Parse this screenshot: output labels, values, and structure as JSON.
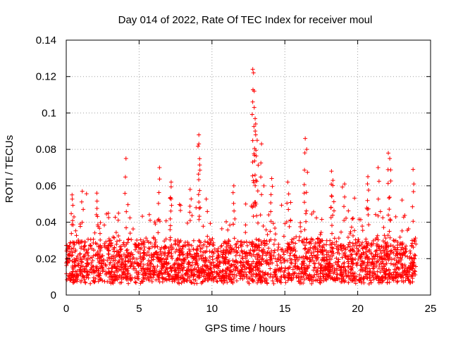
{
  "chart_data": {
    "type": "scatter",
    "title": "Day 014 of 2022, Rate Of TEC Index for receiver moul",
    "xlabel": "GPS time / hours",
    "ylabel": "ROTI / TECUs",
    "xlim": [
      0,
      25
    ],
    "ylim": [
      0,
      0.14
    ],
    "x_ticks": [
      0,
      5,
      10,
      15,
      20,
      25
    ],
    "x_tick_labels": [
      "0",
      "5",
      "10",
      "15",
      "20",
      "25"
    ],
    "y_ticks": [
      0,
      0.02,
      0.04,
      0.06,
      0.08,
      0.1,
      0.12,
      0.14
    ],
    "y_tick_labels": [
      "0",
      "0.02",
      "0.04",
      "0.06",
      "0.08",
      "0.1",
      "0.12",
      "0.14"
    ],
    "grid": true,
    "marker": "+",
    "marker_color": "#ff0000",
    "series": [
      {
        "name": "ROTI",
        "x_range": [
          0,
          24
        ],
        "baseline_range": [
          0.008,
          0.03
        ],
        "notable_points": [
          {
            "x": 4.1,
            "y": 0.075
          },
          {
            "x": 6.4,
            "y": 0.07
          },
          {
            "x": 9.1,
            "y": 0.088
          },
          {
            "x": 9.1,
            "y": 0.083
          },
          {
            "x": 12.8,
            "y": 0.124
          },
          {
            "x": 12.85,
            "y": 0.122
          },
          {
            "x": 12.9,
            "y": 0.112
          },
          {
            "x": 12.9,
            "y": 0.103
          },
          {
            "x": 13.0,
            "y": 0.094
          },
          {
            "x": 13.0,
            "y": 0.088
          },
          {
            "x": 13.1,
            "y": 0.085
          },
          {
            "x": 13.4,
            "y": 0.083
          },
          {
            "x": 16.4,
            "y": 0.086
          },
          {
            "x": 16.5,
            "y": 0.08
          },
          {
            "x": 18.2,
            "y": 0.068
          },
          {
            "x": 18.3,
            "y": 0.063
          },
          {
            "x": 21.4,
            "y": 0.07
          },
          {
            "x": 22.1,
            "y": 0.078
          },
          {
            "x": 22.2,
            "y": 0.075
          },
          {
            "x": 23.8,
            "y": 0.069
          },
          {
            "x": 0.4,
            "y": 0.055
          },
          {
            "x": 1.1,
            "y": 0.057
          },
          {
            "x": 2.1,
            "y": 0.056
          },
          {
            "x": 7.2,
            "y": 0.062
          },
          {
            "x": 8.5,
            "y": 0.058
          },
          {
            "x": 11.5,
            "y": 0.06
          },
          {
            "x": 14.1,
            "y": 0.064
          },
          {
            "x": 15.2,
            "y": 0.062
          },
          {
            "x": 19.1,
            "y": 0.061
          },
          {
            "x": 20.7,
            "y": 0.065
          }
        ]
      }
    ]
  }
}
